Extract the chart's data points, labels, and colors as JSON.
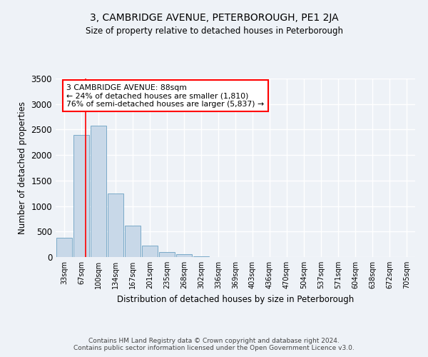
{
  "title": "3, CAMBRIDGE AVENUE, PETERBOROUGH, PE1 2JA",
  "subtitle": "Size of property relative to detached houses in Peterborough",
  "xlabel": "Distribution of detached houses by size in Peterborough",
  "ylabel": "Number of detached properties",
  "bar_color": "#c8d8e8",
  "bar_edge_color": "#7aaac8",
  "categories": [
    "33sqm",
    "67sqm",
    "100sqm",
    "134sqm",
    "167sqm",
    "201sqm",
    "235sqm",
    "268sqm",
    "302sqm",
    "336sqm",
    "369sqm",
    "403sqm",
    "436sqm",
    "470sqm",
    "504sqm",
    "537sqm",
    "571sqm",
    "604sqm",
    "638sqm",
    "672sqm",
    "705sqm"
  ],
  "values": [
    380,
    2390,
    2580,
    1250,
    620,
    220,
    100,
    60,
    20,
    5,
    2,
    0,
    0,
    0,
    0,
    0,
    0,
    0,
    0,
    0,
    0
  ],
  "ylim": [
    0,
    3500
  ],
  "yticks": [
    0,
    500,
    1000,
    1500,
    2000,
    2500,
    3000,
    3500
  ],
  "red_line_x": 1.27,
  "annotation_text": "3 CAMBRIDGE AVENUE: 88sqm\n← 24% of detached houses are smaller (1,810)\n76% of semi-detached houses are larger (5,837) →",
  "footnote": "Contains HM Land Registry data © Crown copyright and database right 2024.\nContains public sector information licensed under the Open Government Licence v3.0.",
  "bg_color": "#eef2f7",
  "plot_bg_color": "#eef2f7",
  "grid_color": "#ffffff"
}
